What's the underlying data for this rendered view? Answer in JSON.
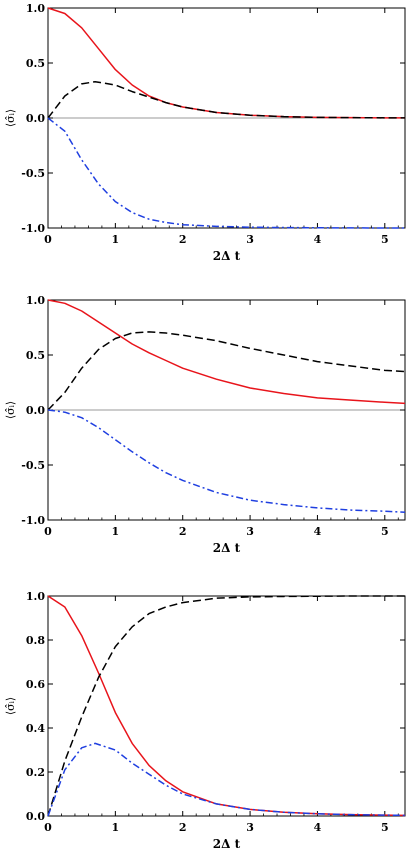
{
  "chart_data": [
    {
      "type": "line",
      "xlabel": "2Δ t",
      "ylabel": "⟨σ̂ᵢ⟩",
      "xlim": [
        0,
        5.3
      ],
      "ylim": [
        -1.0,
        1.0
      ],
      "xticks": [
        "0",
        "1",
        "2",
        "3",
        "4",
        "5"
      ],
      "yticks": [
        "-1.0",
        "-0.5",
        "0.0",
        "0.5",
        "1.0"
      ],
      "zero_line": true,
      "series": [
        {
          "style": "solid",
          "color": "#e8141b",
          "x": [
            0,
            0.25,
            0.5,
            0.75,
            1,
            1.25,
            1.5,
            1.75,
            2,
            2.5,
            3,
            3.5,
            4,
            4.5,
            5,
            5.3
          ],
          "y": [
            1.0,
            0.95,
            0.82,
            0.63,
            0.44,
            0.3,
            0.2,
            0.14,
            0.1,
            0.05,
            0.025,
            0.012,
            0.006,
            0.003,
            0.0015,
            0.001
          ]
        },
        {
          "style": "dashed",
          "color": "#000000",
          "x": [
            0,
            0.25,
            0.5,
            0.7,
            1,
            1.25,
            1.5,
            1.75,
            2,
            2.5,
            3,
            3.5,
            4,
            4.5,
            5,
            5.3
          ],
          "y": [
            0.0,
            0.2,
            0.31,
            0.33,
            0.3,
            0.24,
            0.19,
            0.14,
            0.1,
            0.05,
            0.025,
            0.012,
            0.006,
            0.003,
            0.0015,
            0.001
          ]
        },
        {
          "style": "dashdot",
          "color": "#1f3fe0",
          "x": [
            0,
            0.25,
            0.5,
            0.75,
            1,
            1.25,
            1.5,
            1.75,
            2,
            2.5,
            3,
            3.5,
            4,
            4.5,
            5,
            5.3
          ],
          "y": [
            0.0,
            -0.12,
            -0.38,
            -0.6,
            -0.76,
            -0.86,
            -0.92,
            -0.95,
            -0.97,
            -0.985,
            -0.993,
            -0.996,
            -0.998,
            -0.999,
            -1.0,
            -1.0
          ]
        }
      ]
    },
    {
      "type": "line",
      "xlabel": "2Δ t",
      "ylabel": "⟨σ̂ᵢ⟩",
      "xlim": [
        0,
        5.3
      ],
      "ylim": [
        -1.0,
        1.0
      ],
      "xticks": [
        "0",
        "1",
        "2",
        "3",
        "4",
        "5"
      ],
      "yticks": [
        "-1.0",
        "-0.5",
        "0.0",
        "0.5",
        "1.0"
      ],
      "zero_line": true,
      "series": [
        {
          "style": "solid",
          "color": "#e8141b",
          "x": [
            0,
            0.25,
            0.5,
            0.75,
            1,
            1.25,
            1.5,
            1.75,
            2,
            2.5,
            3,
            3.5,
            4,
            4.5,
            5,
            5.3
          ],
          "y": [
            1.0,
            0.97,
            0.9,
            0.8,
            0.7,
            0.6,
            0.52,
            0.45,
            0.38,
            0.28,
            0.2,
            0.15,
            0.11,
            0.09,
            0.07,
            0.06
          ]
        },
        {
          "style": "dashed",
          "color": "#000000",
          "x": [
            0,
            0.25,
            0.5,
            0.75,
            1,
            1.25,
            1.5,
            1.75,
            2,
            2.5,
            3,
            3.5,
            4,
            4.5,
            5,
            5.3
          ],
          "y": [
            0.0,
            0.16,
            0.38,
            0.55,
            0.65,
            0.7,
            0.71,
            0.7,
            0.68,
            0.63,
            0.56,
            0.5,
            0.44,
            0.4,
            0.36,
            0.35
          ]
        },
        {
          "style": "dashdot",
          "color": "#1f3fe0",
          "x": [
            0,
            0.25,
            0.5,
            0.75,
            1,
            1.25,
            1.5,
            1.75,
            2,
            2.5,
            3,
            3.5,
            4,
            4.5,
            5,
            5.3
          ],
          "y": [
            0.0,
            -0.02,
            -0.07,
            -0.16,
            -0.27,
            -0.38,
            -0.48,
            -0.57,
            -0.64,
            -0.75,
            -0.82,
            -0.86,
            -0.89,
            -0.91,
            -0.92,
            -0.93
          ]
        }
      ]
    },
    {
      "type": "line",
      "xlabel": "2Δ t",
      "ylabel": "⟨σ̂ᵢ⟩",
      "xlim": [
        0,
        5.3
      ],
      "ylim": [
        0.0,
        1.0
      ],
      "xticks": [
        "0",
        "1",
        "2",
        "3",
        "4",
        "5"
      ],
      "yticks": [
        "0.0",
        "0.2",
        "0.4",
        "0.6",
        "0.8",
        "1.0"
      ],
      "zero_line": false,
      "series": [
        {
          "style": "solid",
          "color": "#e8141b",
          "x": [
            0,
            0.25,
            0.5,
            0.75,
            1,
            1.25,
            1.5,
            1.75,
            2,
            2.5,
            3,
            3.5,
            4,
            4.5,
            5,
            5.3
          ],
          "y": [
            1.0,
            0.95,
            0.82,
            0.65,
            0.47,
            0.33,
            0.23,
            0.16,
            0.11,
            0.055,
            0.03,
            0.017,
            0.01,
            0.006,
            0.004,
            0.003
          ]
        },
        {
          "style": "dashed",
          "color": "#000000",
          "x": [
            0,
            0.25,
            0.5,
            0.75,
            1,
            1.25,
            1.5,
            1.75,
            2,
            2.5,
            3,
            3.5,
            4,
            4.5,
            5,
            5.3
          ],
          "y": [
            0.0,
            0.25,
            0.45,
            0.63,
            0.77,
            0.86,
            0.92,
            0.95,
            0.97,
            0.99,
            0.996,
            0.998,
            0.999,
            1.0,
            1.0,
            1.0
          ]
        },
        {
          "style": "dashdot",
          "color": "#1f3fe0",
          "x": [
            0,
            0.25,
            0.5,
            0.7,
            1,
            1.25,
            1.5,
            1.75,
            2,
            2.5,
            3,
            3.5,
            4,
            4.5,
            5,
            5.3
          ],
          "y": [
            0.0,
            0.21,
            0.31,
            0.33,
            0.3,
            0.24,
            0.19,
            0.14,
            0.1,
            0.055,
            0.03,
            0.017,
            0.01,
            0.006,
            0.004,
            0.003
          ]
        }
      ]
    }
  ]
}
